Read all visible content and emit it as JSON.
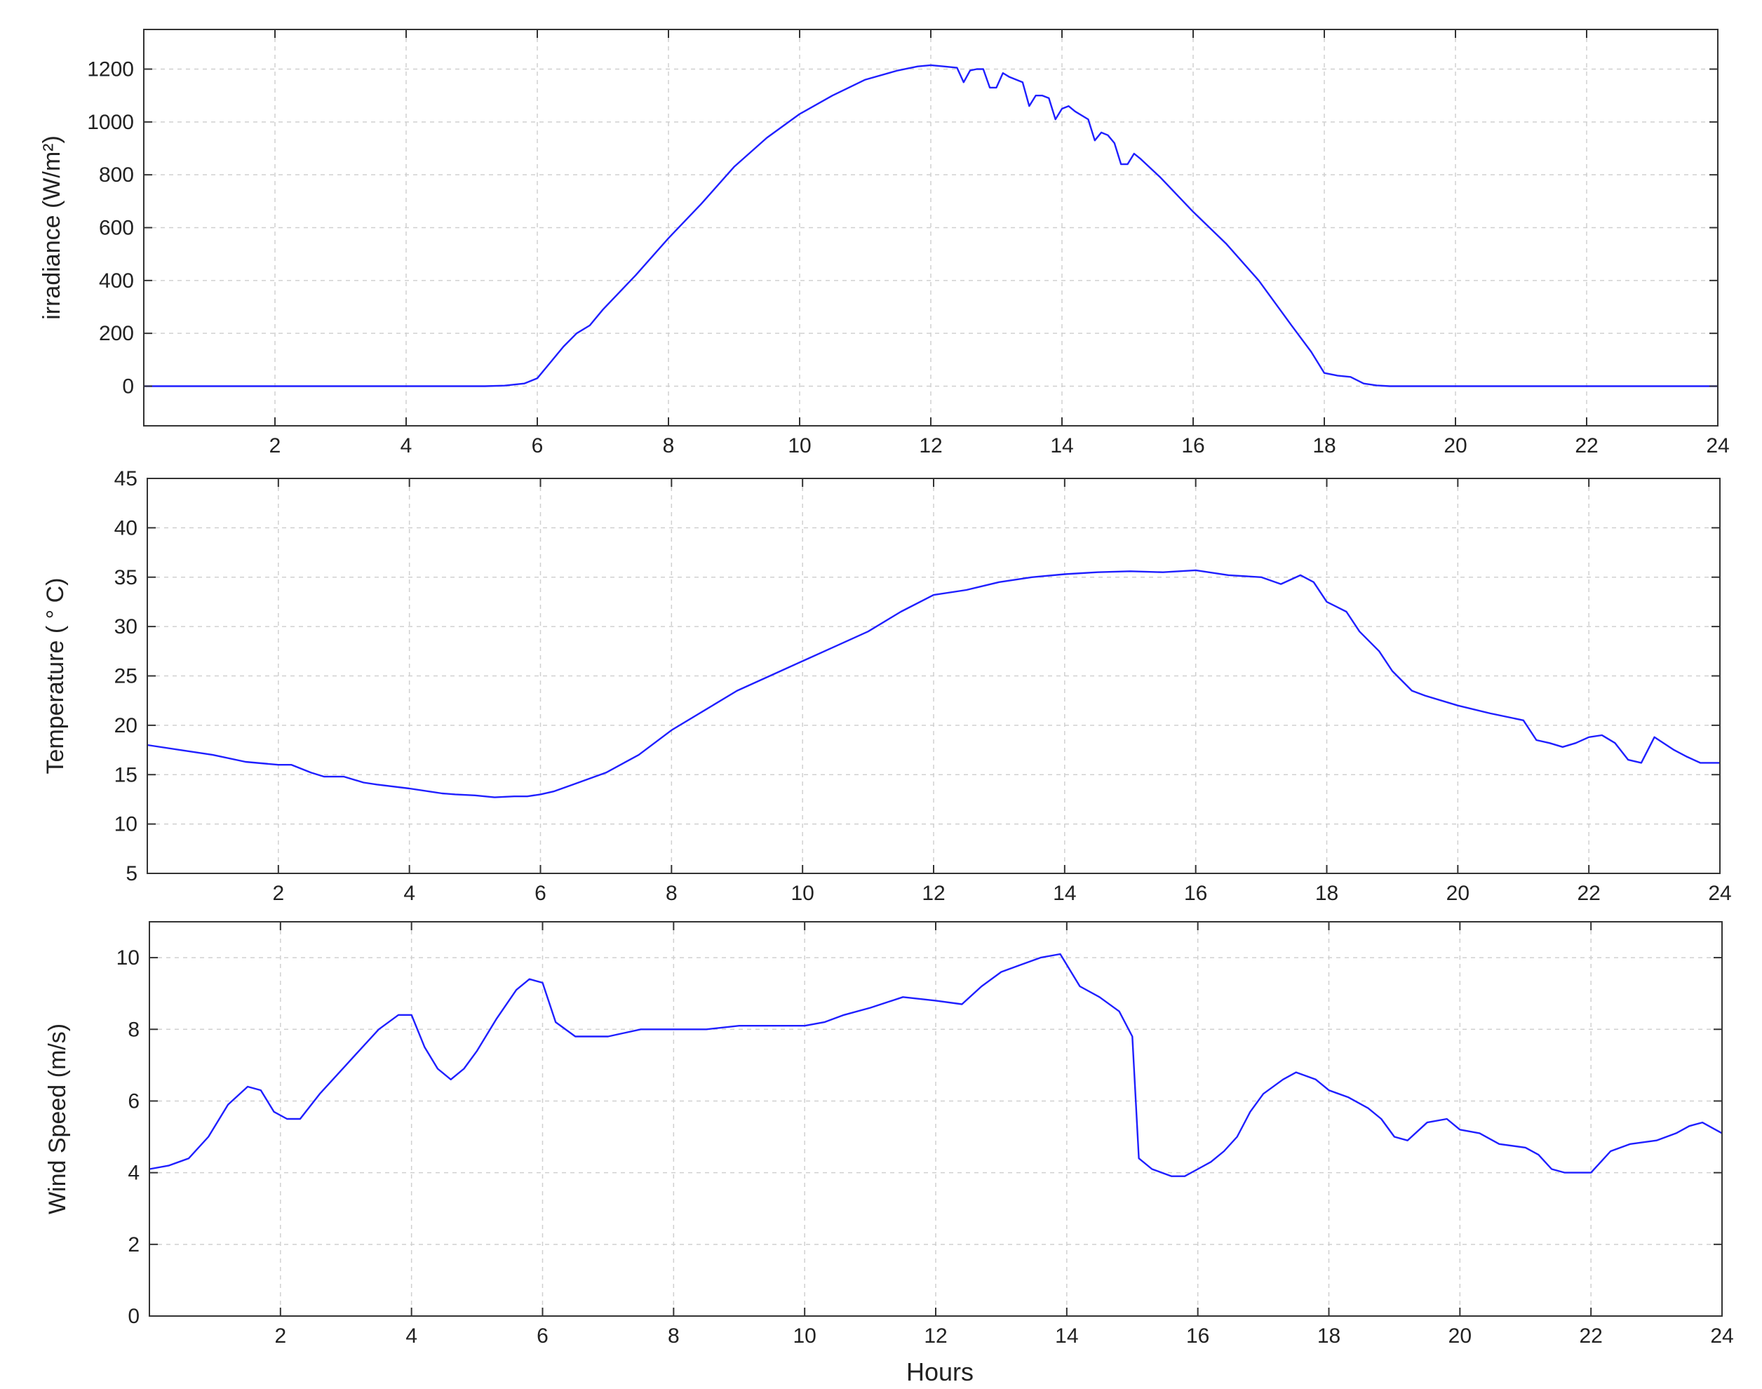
{
  "colors": {
    "line": "#1f1fff",
    "grid": "#d0d0d0",
    "axes": "#333333",
    "background": "#ffffff"
  },
  "xlabel": "Hours",
  "chart_data": [
    {
      "type": "line",
      "title": "",
      "ylabel": "irradiance (W/m²)",
      "xlabel": "",
      "xlim": [
        0,
        24
      ],
      "ylim": [
        -150,
        1350
      ],
      "xticks": [
        2,
        4,
        6,
        8,
        10,
        12,
        14,
        16,
        18,
        20,
        22,
        24
      ],
      "yticks": [
        0,
        200,
        400,
        600,
        800,
        1000,
        1200
      ],
      "grid": true,
      "series": [
        {
          "x": [
            0,
            1,
            2,
            3,
            4,
            5,
            5.2,
            5.5,
            5.8,
            6.0,
            6.2,
            6.4,
            6.6,
            6.8,
            7,
            7.5,
            8,
            8.5,
            9,
            9.5,
            10,
            10.5,
            11,
            11.5,
            11.8,
            12.0,
            12.2,
            12.4,
            12.5,
            12.6,
            12.7,
            12.8,
            12.9,
            13.0,
            13.1,
            13.2,
            13.4,
            13.5,
            13.6,
            13.7,
            13.8,
            13.9,
            14.0,
            14.1,
            14.2,
            14.4,
            14.5,
            14.6,
            14.7,
            14.8,
            14.9,
            15.0,
            15.1,
            15.2,
            15.5,
            16,
            16.5,
            17,
            17.5,
            17.8,
            18.0,
            18.2,
            18.4,
            18.6,
            18.8,
            19,
            20,
            21,
            22,
            23,
            24
          ],
          "y": [
            0,
            0,
            0,
            0,
            0,
            0,
            0,
            2,
            10,
            30,
            90,
            150,
            200,
            230,
            290,
            420,
            560,
            690,
            830,
            940,
            1030,
            1100,
            1160,
            1195,
            1210,
            1215,
            1210,
            1205,
            1150,
            1195,
            1200,
            1200,
            1130,
            1130,
            1185,
            1170,
            1150,
            1060,
            1100,
            1100,
            1090,
            1010,
            1050,
            1060,
            1040,
            1010,
            930,
            960,
            950,
            920,
            840,
            840,
            880,
            860,
            790,
            660,
            540,
            400,
            230,
            130,
            50,
            40,
            35,
            10,
            3,
            0,
            0,
            0,
            0,
            0,
            0
          ]
        }
      ]
    },
    {
      "type": "line",
      "title": "",
      "ylabel": "Temperature ( ° C)",
      "xlabel": "",
      "xlim": [
        0,
        24
      ],
      "ylim": [
        5,
        45
      ],
      "xticks": [
        2,
        4,
        6,
        8,
        10,
        12,
        14,
        16,
        18,
        20,
        22,
        24
      ],
      "yticks": [
        5,
        10,
        15,
        20,
        25,
        30,
        35,
        40,
        45
      ],
      "grid": true,
      "series": [
        {
          "x": [
            0,
            0.5,
            1,
            1.5,
            2,
            2.2,
            2.5,
            2.7,
            3.0,
            3.3,
            3.5,
            4.0,
            4.3,
            4.5,
            4.7,
            5.0,
            5.3,
            5.6,
            5.8,
            6.0,
            6.2,
            6.5,
            7.0,
            7.5,
            8.0,
            8.5,
            9.0,
            9.5,
            10.0,
            10.5,
            11.0,
            11.5,
            12.0,
            12.5,
            13.0,
            13.5,
            14.0,
            14.5,
            15.0,
            15.5,
            16.0,
            16.5,
            17.0,
            17.3,
            17.6,
            17.8,
            18.0,
            18.3,
            18.5,
            18.8,
            19.0,
            19.3,
            19.5,
            20.0,
            20.5,
            21.0,
            21.2,
            21.4,
            21.6,
            21.8,
            22.0,
            22.2,
            22.4,
            22.6,
            22.8,
            23.0,
            23.3,
            23.5,
            23.7,
            24.0
          ],
          "y": [
            18,
            17.5,
            17,
            16.3,
            16,
            16,
            15.2,
            14.8,
            14.8,
            14.2,
            14,
            13.6,
            13.3,
            13.1,
            13.0,
            12.9,
            12.7,
            12.8,
            12.8,
            13,
            13.3,
            14,
            15.2,
            17,
            19.5,
            21.5,
            23.5,
            25,
            26.5,
            28,
            29.5,
            31.5,
            33.2,
            33.7,
            34.5,
            35.0,
            35.3,
            35.5,
            35.6,
            35.5,
            35.7,
            35.2,
            35.0,
            34.3,
            35.2,
            34.5,
            32.5,
            31.5,
            29.5,
            27.5,
            25.5,
            23.5,
            23,
            22,
            21.2,
            20.5,
            18.5,
            18.2,
            17.8,
            18.2,
            18.8,
            19,
            18.2,
            16.5,
            16.2,
            18.8,
            17.5,
            16.8,
            16.2,
            16.2
          ]
        }
      ]
    },
    {
      "type": "line",
      "title": "",
      "ylabel": "Wind Speed (m/s)",
      "xlabel": "Hours",
      "xlim": [
        0,
        24
      ],
      "ylim": [
        0,
        11
      ],
      "xticks": [
        2,
        4,
        6,
        8,
        10,
        12,
        14,
        16,
        18,
        20,
        22,
        24
      ],
      "yticks": [
        0,
        2,
        4,
        6,
        8,
        10
      ],
      "grid": true,
      "series": [
        {
          "x": [
            0,
            0.3,
            0.6,
            0.9,
            1.2,
            1.5,
            1.7,
            1.9,
            2.1,
            2.3,
            2.6,
            2.9,
            3.2,
            3.5,
            3.8,
            4.0,
            4.2,
            4.4,
            4.6,
            4.8,
            5.0,
            5.3,
            5.6,
            5.8,
            6.0,
            6.2,
            6.5,
            7.0,
            7.5,
            8.0,
            8.5,
            9.0,
            9.5,
            10.0,
            10.3,
            10.6,
            11.0,
            11.5,
            12.0,
            12.4,
            12.7,
            13.0,
            13.3,
            13.6,
            13.9,
            14.0,
            14.2,
            14.5,
            14.8,
            15.0,
            15.1,
            15.3,
            15.6,
            15.8,
            16.0,
            16.2,
            16.4,
            16.6,
            16.8,
            17.0,
            17.3,
            17.5,
            17.8,
            18.0,
            18.3,
            18.6,
            18.8,
            19.0,
            19.2,
            19.5,
            19.8,
            20.0,
            20.3,
            20.6,
            21.0,
            21.2,
            21.4,
            21.6,
            21.8,
            22.0,
            22.3,
            22.6,
            23.0,
            23.3,
            23.5,
            23.7,
            24.0
          ],
          "y": [
            4.1,
            4.2,
            4.4,
            5.0,
            5.9,
            6.4,
            6.3,
            5.7,
            5.5,
            5.5,
            6.2,
            6.8,
            7.4,
            8.0,
            8.4,
            8.4,
            7.5,
            6.9,
            6.6,
            6.9,
            7.4,
            8.3,
            9.1,
            9.4,
            9.3,
            8.2,
            7.8,
            7.8,
            8.0,
            8.0,
            8.0,
            8.1,
            8.1,
            8.1,
            8.2,
            8.4,
            8.6,
            8.9,
            8.8,
            8.7,
            9.2,
            9.6,
            9.8,
            10.0,
            10.1,
            9.8,
            9.2,
            8.9,
            8.5,
            7.8,
            4.4,
            4.1,
            3.9,
            3.9,
            4.1,
            4.3,
            4.6,
            5.0,
            5.7,
            6.2,
            6.6,
            6.8,
            6.6,
            6.3,
            6.1,
            5.8,
            5.5,
            5.0,
            4.9,
            5.4,
            5.5,
            5.2,
            5.1,
            4.8,
            4.7,
            4.5,
            4.1,
            4.0,
            4.0,
            4.0,
            4.6,
            4.8,
            4.9,
            5.1,
            5.3,
            5.4,
            5.1
          ]
        }
      ]
    }
  ]
}
